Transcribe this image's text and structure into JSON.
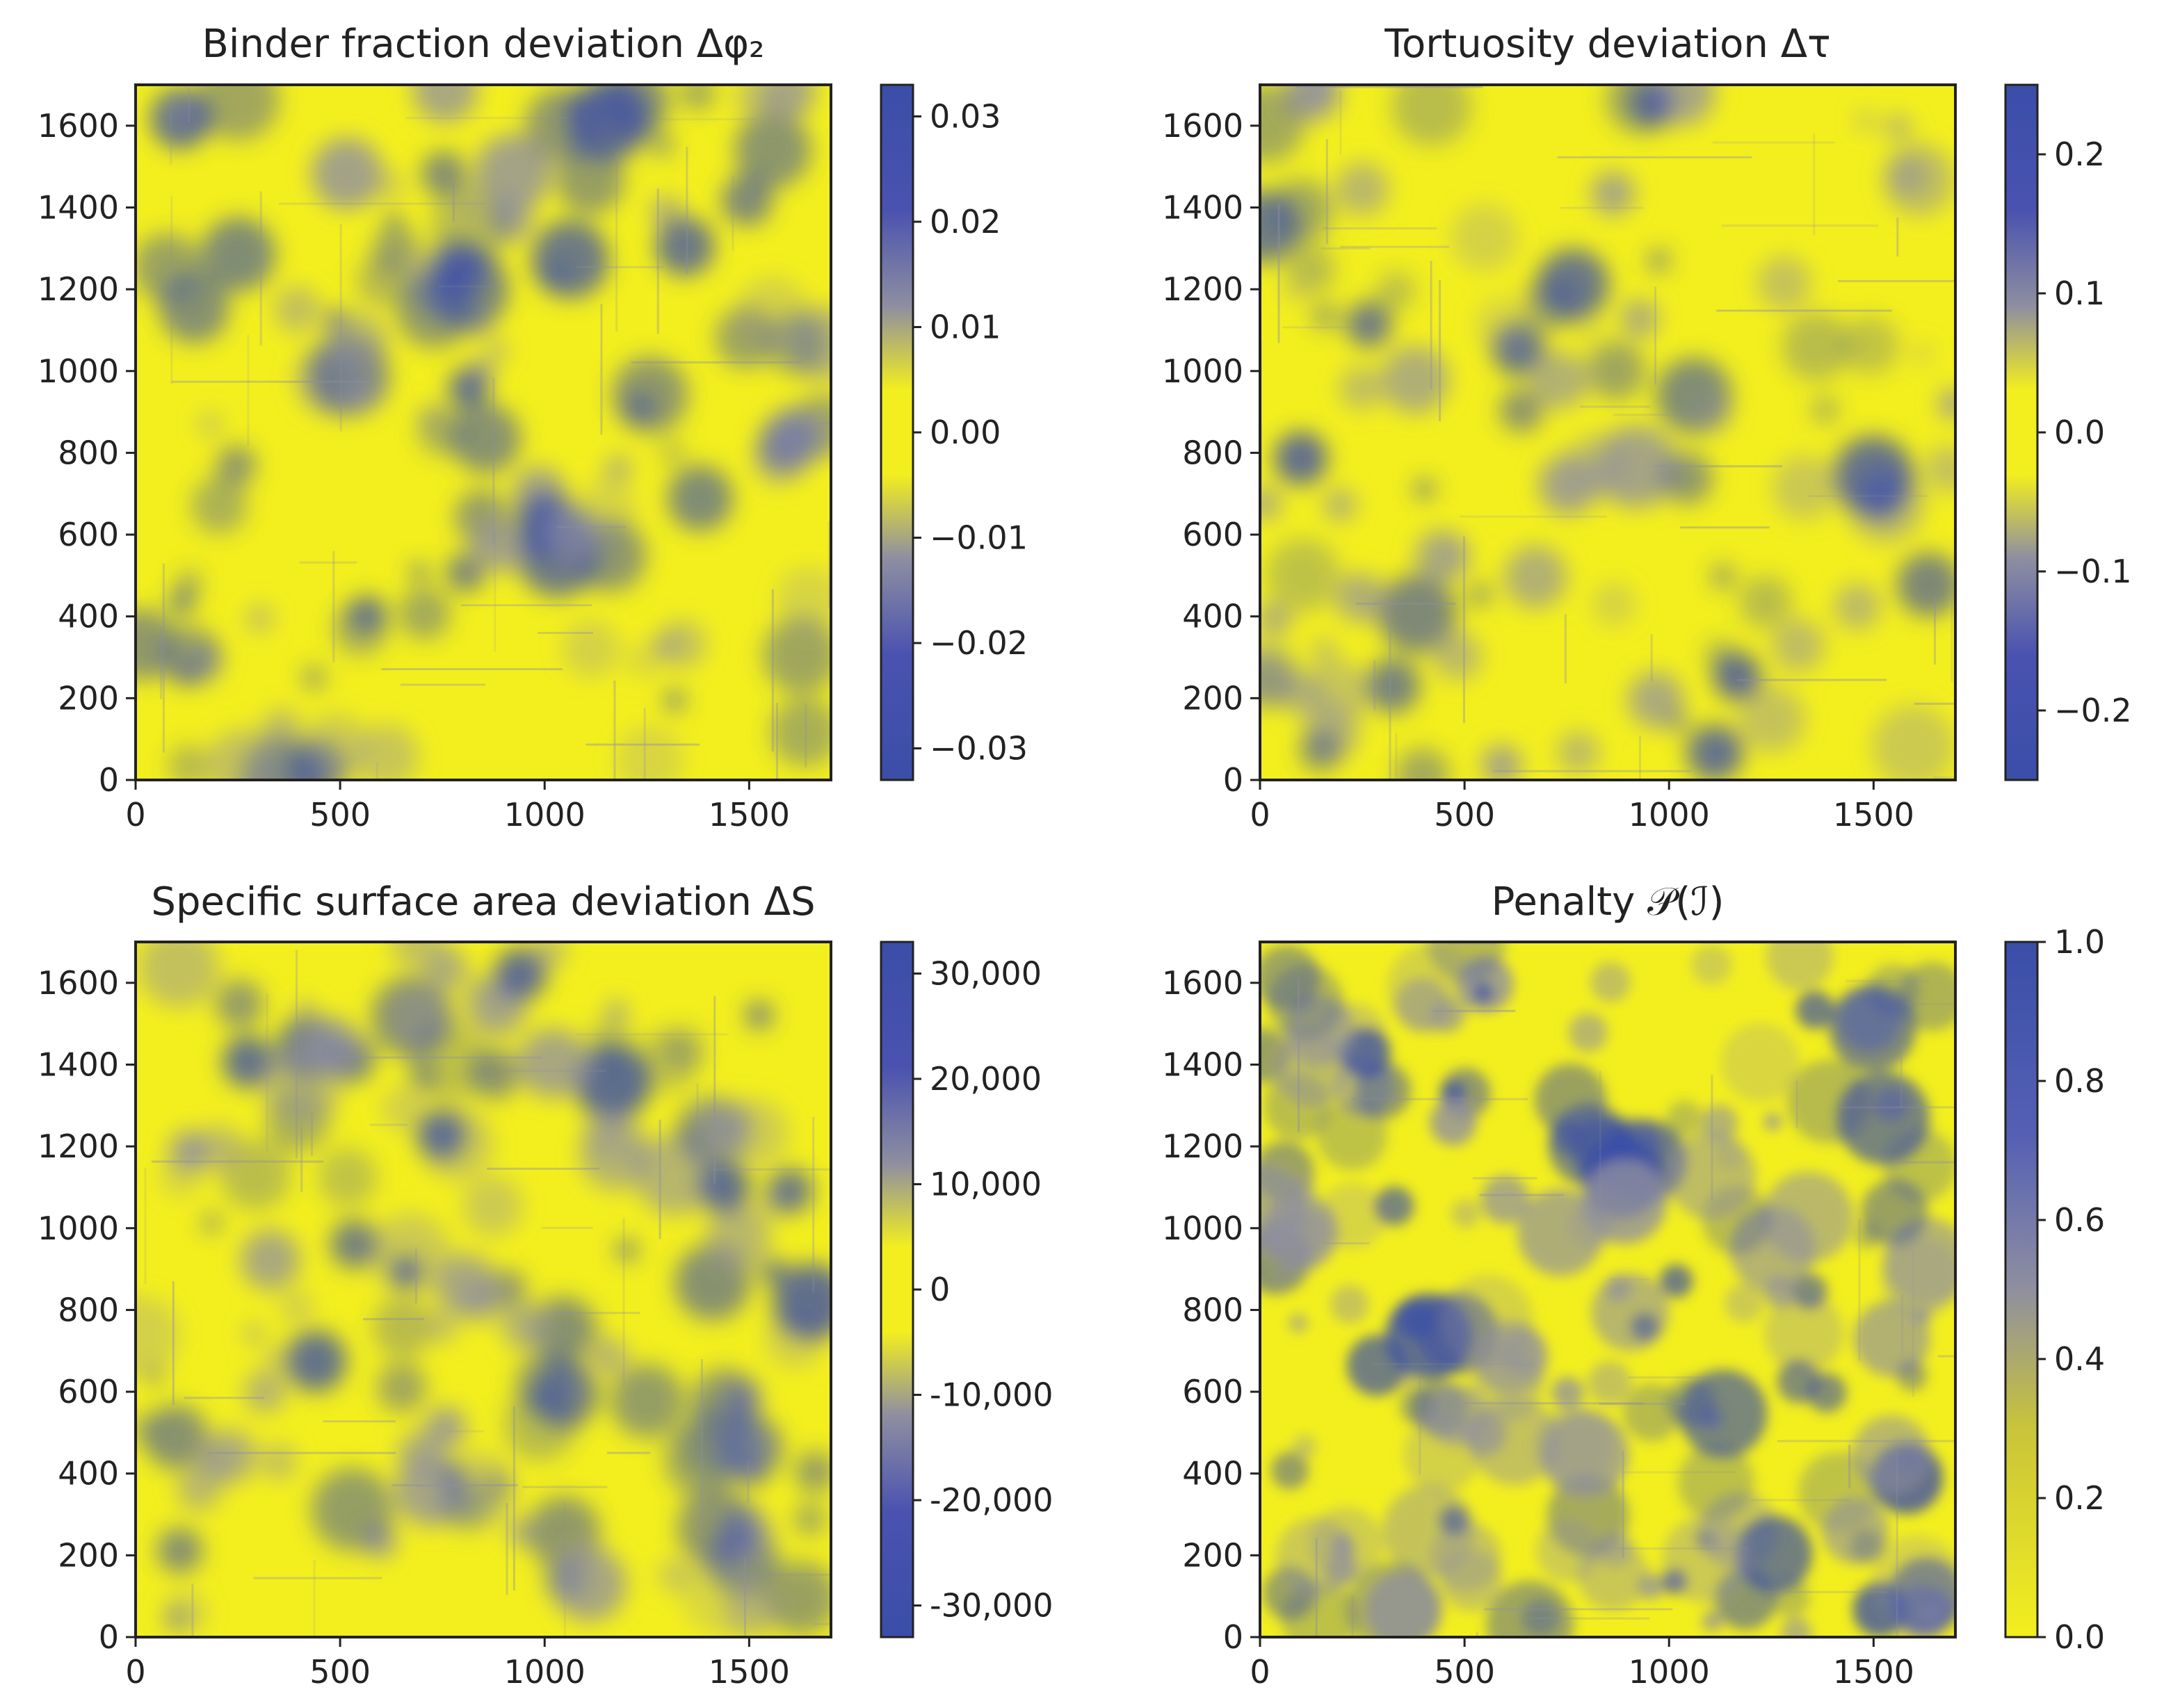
{
  "chart_data": [
    {
      "type": "heatmap",
      "title": "Binder fraction deviation Δφ₂",
      "x_ticks": [
        "0",
        "500",
        "1000",
        "1500"
      ],
      "x_tick_values": [
        0,
        500,
        1000,
        1500
      ],
      "y_ticks": [
        "0",
        "200",
        "400",
        "600",
        "800",
        "1000",
        "1200",
        "1400",
        "1600"
      ],
      "y_tick_values": [
        0,
        200,
        400,
        600,
        800,
        1000,
        1200,
        1400,
        1600
      ],
      "xlim": [
        0,
        1700
      ],
      "ylim": [
        0,
        1700
      ],
      "colorbar": {
        "ticks": [
          "−0.03",
          "−0.02",
          "−0.01",
          "0.00",
          "0.01",
          "0.02",
          "0.03"
        ],
        "tick_values": [
          -0.03,
          -0.02,
          -0.01,
          0.0,
          0.01,
          0.02,
          0.03
        ],
        "range": [
          -0.033,
          0.033
        ],
        "mode": "diverging"
      },
      "colormap": [
        "#3a4ea8",
        "#8f8fa0",
        "#f3ef1e"
      ]
    },
    {
      "type": "heatmap",
      "title": "Tortuosity deviation Δτ",
      "x_ticks": [
        "0",
        "500",
        "1000",
        "1500"
      ],
      "x_tick_values": [
        0,
        500,
        1000,
        1500
      ],
      "y_ticks": [
        "0",
        "200",
        "400",
        "600",
        "800",
        "1000",
        "1200",
        "1400",
        "1600"
      ],
      "y_tick_values": [
        0,
        200,
        400,
        600,
        800,
        1000,
        1200,
        1400,
        1600
      ],
      "xlim": [
        0,
        1700
      ],
      "ylim": [
        0,
        1700
      ],
      "colorbar": {
        "ticks": [
          "−0.2",
          "−0.1",
          "0.0",
          "0.1",
          "0.2"
        ],
        "tick_values": [
          -0.2,
          -0.1,
          0.0,
          0.1,
          0.2
        ],
        "range": [
          -0.25,
          0.25
        ],
        "mode": "diverging"
      },
      "colormap": [
        "#3a4ea8",
        "#8f8fa0",
        "#f3ef1e"
      ]
    },
    {
      "type": "heatmap",
      "title": "Specific surface area deviation ΔS",
      "x_ticks": [
        "0",
        "500",
        "1000",
        "1500"
      ],
      "x_tick_values": [
        0,
        500,
        1000,
        1500
      ],
      "y_ticks": [
        "0",
        "200",
        "400",
        "600",
        "800",
        "1000",
        "1200",
        "1400",
        "1600"
      ],
      "y_tick_values": [
        0,
        200,
        400,
        600,
        800,
        1000,
        1200,
        1400,
        1600
      ],
      "xlim": [
        0,
        1700
      ],
      "ylim": [
        0,
        1700
      ],
      "colorbar": {
        "ticks": [
          "-30,000",
          "-20,000",
          "-10,000",
          "0",
          "10,000",
          "20,000",
          "30,000"
        ],
        "tick_values": [
          -30000,
          -20000,
          -10000,
          0,
          10000,
          20000,
          30000
        ],
        "range": [
          -33000,
          33000
        ],
        "mode": "diverging"
      },
      "colormap": [
        "#3a4ea8",
        "#8f8fa0",
        "#f3ef1e"
      ]
    },
    {
      "type": "heatmap",
      "title": "Penalty 𝒫(ℐ)",
      "x_ticks": [
        "0",
        "500",
        "1000",
        "1500"
      ],
      "x_tick_values": [
        0,
        500,
        1000,
        1500
      ],
      "y_ticks": [
        "0",
        "200",
        "400",
        "600",
        "800",
        "1000",
        "1200",
        "1400",
        "1600"
      ],
      "y_tick_values": [
        0,
        200,
        400,
        600,
        800,
        1000,
        1200,
        1400,
        1600
      ],
      "xlim": [
        0,
        1700
      ],
      "ylim": [
        0,
        1700
      ],
      "colorbar": {
        "ticks": [
          "0.0",
          "0.2",
          "0.4",
          "0.6",
          "0.8",
          "1.0"
        ],
        "tick_values": [
          0.0,
          0.2,
          0.4,
          0.6,
          0.8,
          1.0
        ],
        "range": [
          0.0,
          1.0
        ],
        "mode": "sequential"
      },
      "colormap": [
        "#3a4ea8",
        "#8f8fa0",
        "#f3ef1e"
      ]
    }
  ]
}
